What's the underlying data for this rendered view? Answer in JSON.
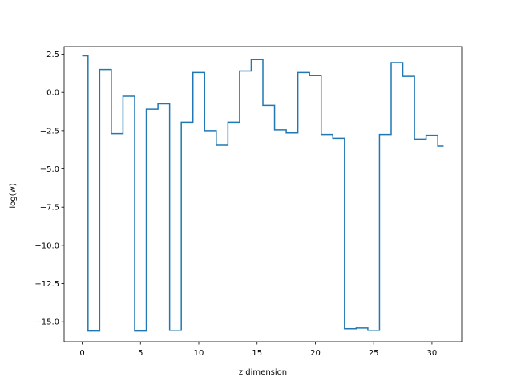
{
  "chart_data": {
    "type": "line",
    "drawstyle": "steps-mid",
    "xlabel": "z dimension",
    "ylabel": "log(w)",
    "xlim": [
      -1.55,
      32.55
    ],
    "ylim": [
      -16.3,
      3.0
    ],
    "xticks": [
      0,
      5,
      10,
      15,
      20,
      25,
      30
    ],
    "xtick_labels": [
      "0",
      "5",
      "10",
      "15",
      "20",
      "25",
      "30"
    ],
    "yticks": [
      2.5,
      0.0,
      -2.5,
      -5.0,
      -7.5,
      -10.0,
      -12.5,
      -15.0
    ],
    "ytick_labels": [
      "2.5",
      "0.0",
      "−2.5",
      "−5.0",
      "−7.5",
      "−10.0",
      "−12.5",
      "−15.0"
    ],
    "grid": false,
    "series": [
      {
        "color": "#1f77b4",
        "x": [
          0,
          1,
          2,
          3,
          4,
          5,
          6,
          7,
          8,
          9,
          10,
          11,
          12,
          13,
          14,
          15,
          16,
          17,
          18,
          19,
          20,
          21,
          22,
          23,
          24,
          25,
          26,
          27,
          28,
          29,
          30,
          31
        ],
        "y": [
          2.4,
          -15.6,
          1.5,
          -2.7,
          -0.25,
          -15.6,
          -1.1,
          -0.75,
          -15.55,
          -1.95,
          1.3,
          -2.5,
          -3.45,
          -1.95,
          1.4,
          2.15,
          -0.85,
          -2.45,
          -2.65,
          1.3,
          1.1,
          -2.75,
          -3.0,
          -15.45,
          -15.4,
          -15.55,
          -2.75,
          1.95,
          1.05,
          -3.05,
          -2.8,
          -3.5
        ]
      }
    ]
  }
}
